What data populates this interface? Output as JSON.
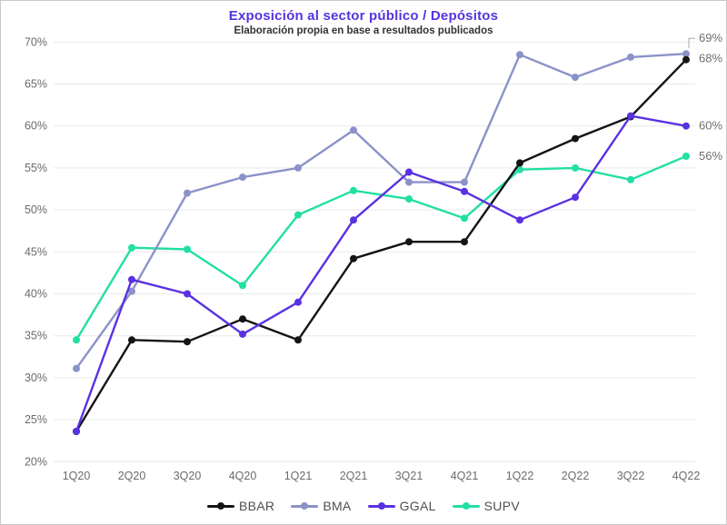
{
  "title": "Exposición al sector público / Depósitos",
  "subtitle": "Elaboración propia en base a resultados publicados",
  "colors": {
    "title_text": "#5633dd",
    "subtitle_text": "#333333",
    "grid_line": "#e9e9e9",
    "axis_tick_text": "#6b6b6b",
    "end_label_text": "#6f6f6f",
    "leader_line": "#aaaaaa",
    "background": "#ffffff",
    "frame_border": "#c9c9c9"
  },
  "chart_data": {
    "type": "line",
    "title": "Exposición al sector público / Depósitos",
    "subtitle": "Elaboración propia en base a resultados publicados",
    "categories": [
      "1Q20",
      "2Q20",
      "3Q20",
      "4Q20",
      "1Q21",
      "2Q21",
      "3Q21",
      "4Q21",
      "1Q22",
      "2Q22",
      "3Q22",
      "4Q22"
    ],
    "yticks": [
      {
        "v": 70,
        "label": "70%"
      },
      {
        "v": 65,
        "label": "65%"
      },
      {
        "v": 60,
        "label": "60%"
      },
      {
        "v": 55,
        "label": "55%"
      },
      {
        "v": 50,
        "label": "50%"
      },
      {
        "v": 45,
        "label": "45%"
      },
      {
        "v": 40,
        "label": "40%"
      },
      {
        "v": 35,
        "label": "35%"
      },
      {
        "v": 30,
        "label": "30%"
      },
      {
        "v": 25,
        "label": "25%"
      },
      {
        "v": 20,
        "label": "20%"
      }
    ],
    "ylim": [
      20,
      70
    ],
    "grid": "horizontal",
    "legend_position": "bottom",
    "series": [
      {
        "name": "BBAR",
        "color": "#141414",
        "values": [
          23.6,
          34.5,
          34.3,
          37.0,
          34.5,
          44.2,
          46.2,
          46.2,
          55.6,
          58.5,
          61.1,
          67.9
        ],
        "end_label": "68%",
        "end_label_dy": 3,
        "leader": false
      },
      {
        "name": "BMA",
        "color": "#8b92c8",
        "values": [
          31.1,
          40.3,
          52.0,
          53.9,
          55.0,
          59.5,
          53.3,
          53.3,
          68.5,
          65.8,
          68.2,
          68.6
        ],
        "end_label": "69%",
        "end_label_dy": -13,
        "leader": true
      },
      {
        "name": "GGAL",
        "color": "#5a31e2",
        "values": [
          23.6,
          41.7,
          40.0,
          35.2,
          39.0,
          48.8,
          54.5,
          52.2,
          48.8,
          51.5,
          61.2,
          60.0
        ],
        "end_label": "60%",
        "end_label_dy": 4,
        "leader": false
      },
      {
        "name": "SUPV",
        "color": "#22dfa4",
        "values": [
          34.5,
          45.5,
          45.3,
          41.0,
          49.4,
          52.3,
          51.3,
          49.0,
          54.8,
          55.0,
          53.6,
          56.4
        ],
        "end_label": "56%",
        "end_label_dy": 4,
        "leader": false
      }
    ]
  }
}
